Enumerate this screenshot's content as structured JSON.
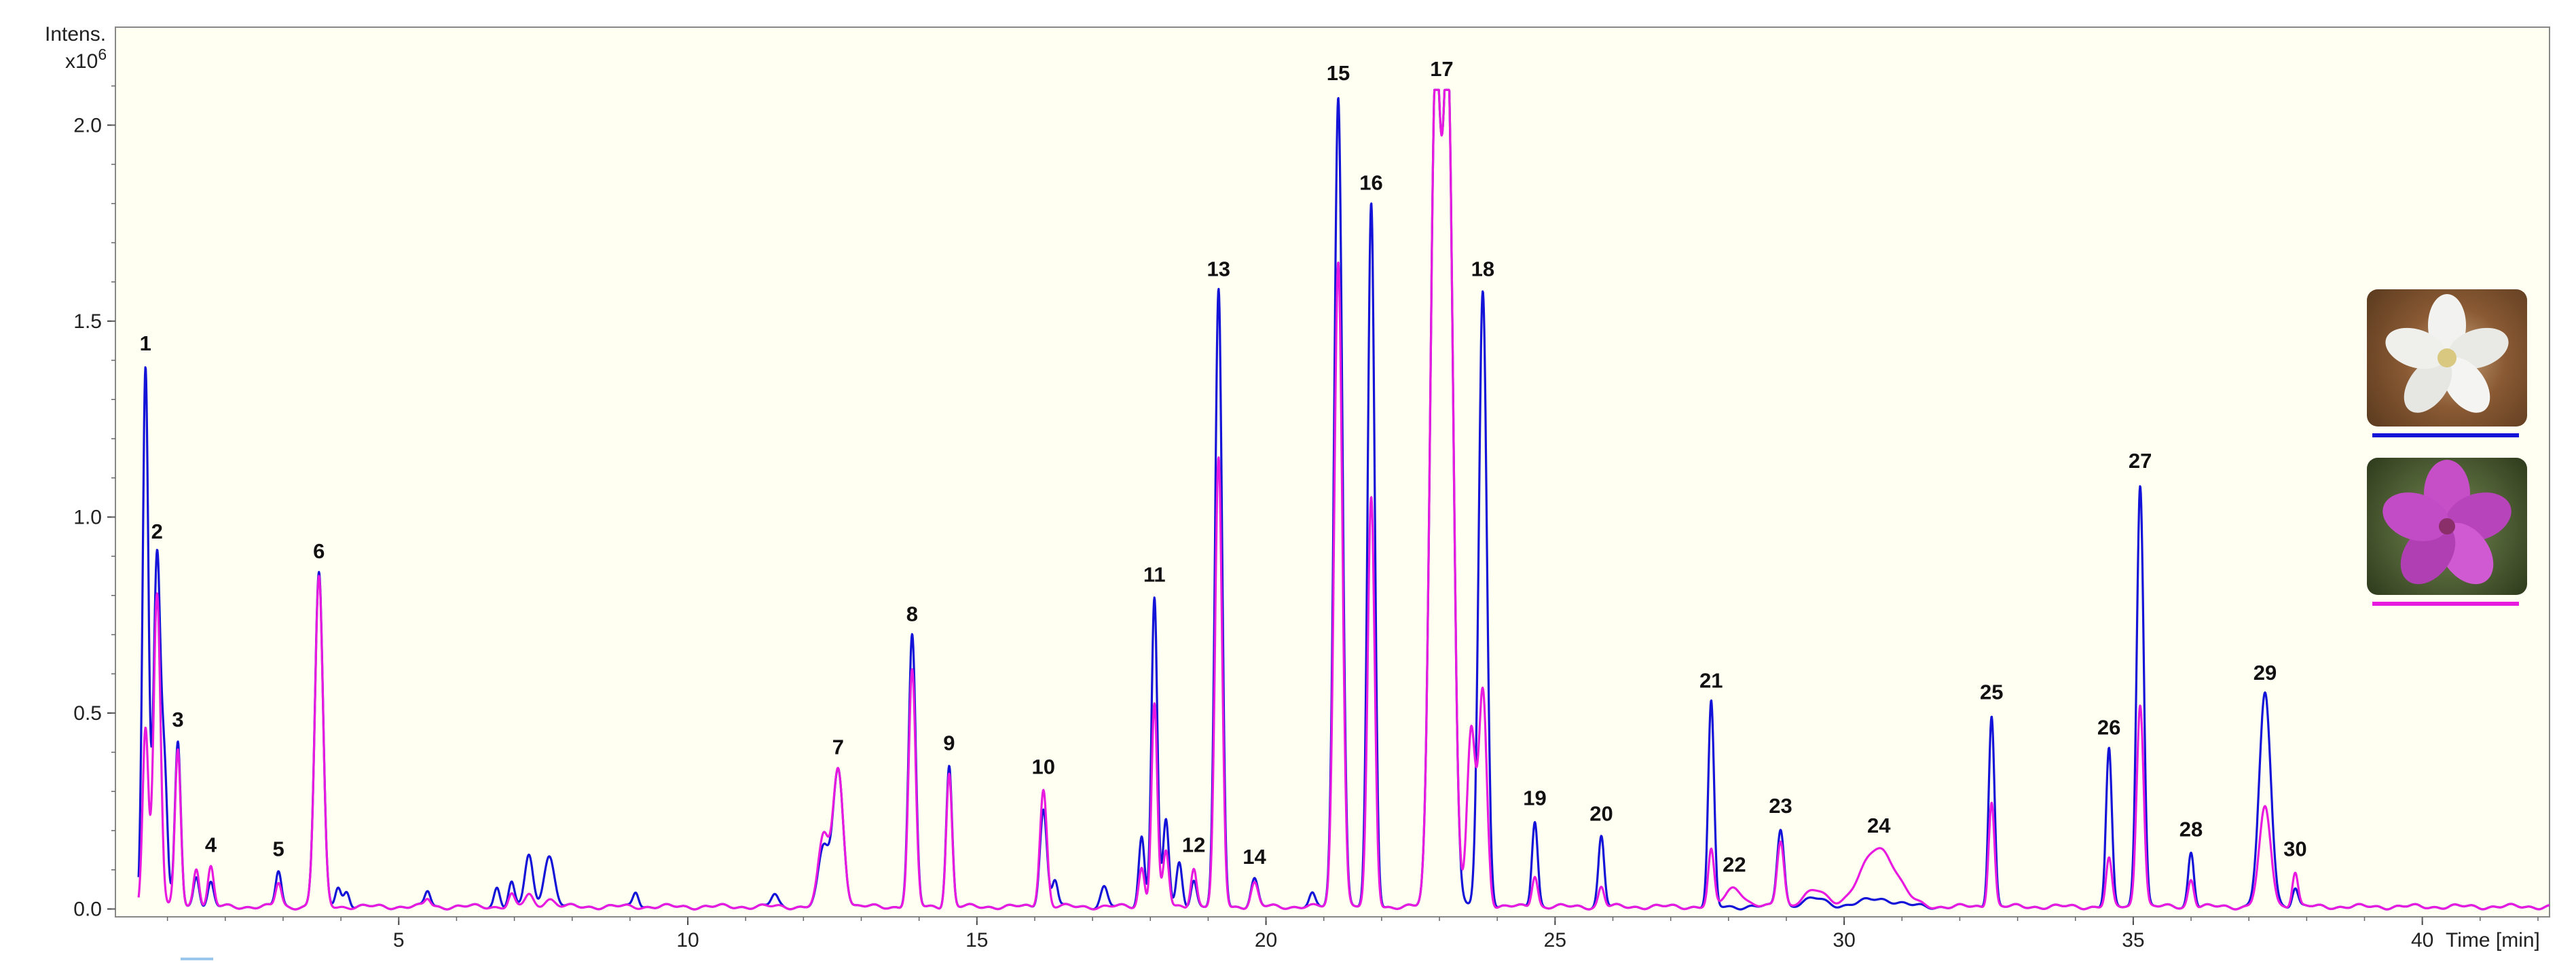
{
  "chart_data": {
    "type": "line",
    "y_axis_title": "Intens.",
    "y_axis_scale_base": "x10",
    "y_axis_scale_exp": "6",
    "x_axis_title": "Time [min]",
    "xlim": [
      0.1,
      42.2
    ],
    "ylim": [
      -0.02,
      2.25
    ],
    "x_ticks": [
      "5",
      "10",
      "15",
      "20",
      "25",
      "30",
      "35",
      "40"
    ],
    "y_ticks": [
      "0.0",
      "0.5",
      "1.0",
      "1.5",
      "2.0"
    ],
    "background_color": "#FFFFF2",
    "series": [
      {
        "color": "#1414D8",
        "legend_icon": "white-flower-photo",
        "peaks": [
          [
            0.62,
            1.38,
            0.05
          ],
          [
            0.82,
            0.9,
            0.06
          ],
          [
            0.95,
            0.32,
            0.05
          ],
          [
            1.18,
            0.42,
            0.05
          ],
          [
            1.5,
            0.08,
            0.05
          ],
          [
            1.75,
            0.06,
            0.05
          ],
          [
            2.92,
            0.09,
            0.05
          ],
          [
            3.62,
            0.85,
            0.07
          ],
          [
            3.95,
            0.05,
            0.05
          ],
          [
            4.1,
            0.04,
            0.05
          ],
          [
            5.5,
            0.04,
            0.05
          ],
          [
            6.7,
            0.05,
            0.05
          ],
          [
            6.95,
            0.06,
            0.05
          ],
          [
            7.25,
            0.13,
            0.07
          ],
          [
            7.6,
            0.13,
            0.09
          ],
          [
            9.1,
            0.04,
            0.05
          ],
          [
            11.5,
            0.03,
            0.06
          ],
          [
            12.35,
            0.15,
            0.09
          ],
          [
            12.6,
            0.35,
            0.09
          ],
          [
            13.88,
            0.69,
            0.06
          ],
          [
            14.52,
            0.36,
            0.05
          ],
          [
            16.15,
            0.25,
            0.06
          ],
          [
            16.35,
            0.07,
            0.05
          ],
          [
            17.2,
            0.05,
            0.06
          ],
          [
            17.85,
            0.18,
            0.05
          ],
          [
            18.07,
            0.79,
            0.05
          ],
          [
            18.27,
            0.22,
            0.05
          ],
          [
            18.5,
            0.11,
            0.05
          ],
          [
            18.75,
            0.07,
            0.05
          ],
          [
            19.18,
            1.57,
            0.06
          ],
          [
            19.8,
            0.07,
            0.06
          ],
          [
            20.8,
            0.03,
            0.05
          ],
          [
            21.25,
            2.07,
            0.07
          ],
          [
            21.82,
            1.79,
            0.06
          ],
          [
            22.93,
            2.08,
            0.09
          ],
          [
            23.15,
            2.08,
            0.09
          ],
          [
            23.75,
            1.57,
            0.07
          ],
          [
            24.65,
            0.22,
            0.05
          ],
          [
            25.8,
            0.18,
            0.05
          ],
          [
            27.7,
            0.52,
            0.05
          ],
          [
            28.9,
            0.2,
            0.06
          ],
          [
            29.5,
            0.02,
            0.2
          ],
          [
            30.6,
            0.02,
            0.3
          ],
          [
            32.55,
            0.49,
            0.05
          ],
          [
            34.58,
            0.4,
            0.05
          ],
          [
            35.12,
            1.08,
            0.06
          ],
          [
            36.0,
            0.14,
            0.05
          ],
          [
            37.28,
            0.54,
            0.1
          ],
          [
            37.8,
            0.05,
            0.05
          ]
        ]
      },
      {
        "color": "#E81AE0",
        "legend_icon": "pink-flower-photo",
        "peaks": [
          [
            0.62,
            0.46,
            0.05
          ],
          [
            0.82,
            0.8,
            0.06
          ],
          [
            1.18,
            0.4,
            0.05
          ],
          [
            1.5,
            0.1,
            0.05
          ],
          [
            1.75,
            0.1,
            0.05
          ],
          [
            2.92,
            0.06,
            0.05
          ],
          [
            3.62,
            0.84,
            0.07
          ],
          [
            5.5,
            0.02,
            0.05
          ],
          [
            6.95,
            0.03,
            0.05
          ],
          [
            7.25,
            0.03,
            0.07
          ],
          [
            7.6,
            0.02,
            0.09
          ],
          [
            12.35,
            0.18,
            0.09
          ],
          [
            12.6,
            0.35,
            0.09
          ],
          [
            13.88,
            0.6,
            0.06
          ],
          [
            14.52,
            0.34,
            0.05
          ],
          [
            16.15,
            0.3,
            0.06
          ],
          [
            17.85,
            0.1,
            0.05
          ],
          [
            18.07,
            0.52,
            0.05
          ],
          [
            18.27,
            0.14,
            0.05
          ],
          [
            18.75,
            0.1,
            0.05
          ],
          [
            19.18,
            1.14,
            0.06
          ],
          [
            19.8,
            0.06,
            0.06
          ],
          [
            21.25,
            1.65,
            0.07
          ],
          [
            21.82,
            1.04,
            0.06
          ],
          [
            22.93,
            2.08,
            0.09
          ],
          [
            23.15,
            2.08,
            0.09
          ],
          [
            23.75,
            0.55,
            0.07
          ],
          [
            23.55,
            0.45,
            0.07
          ],
          [
            24.65,
            0.08,
            0.05
          ],
          [
            25.8,
            0.05,
            0.05
          ],
          [
            27.7,
            0.14,
            0.05
          ],
          [
            28.1,
            0.05,
            0.15
          ],
          [
            28.9,
            0.17,
            0.06
          ],
          [
            29.5,
            0.04,
            0.2
          ],
          [
            30.6,
            0.15,
            0.3
          ],
          [
            32.55,
            0.27,
            0.05
          ],
          [
            34.58,
            0.12,
            0.05
          ],
          [
            35.12,
            0.52,
            0.06
          ],
          [
            36.0,
            0.07,
            0.05
          ],
          [
            37.28,
            0.25,
            0.1
          ],
          [
            37.8,
            0.09,
            0.05
          ]
        ]
      }
    ],
    "peak_labels": [
      {
        "text": "1",
        "x": 0.62,
        "y": 1.38
      },
      {
        "text": "2",
        "x": 0.82,
        "y": 0.9
      },
      {
        "text": "3",
        "x": 1.18,
        "y": 0.42
      },
      {
        "text": "4",
        "x": 1.75,
        "y": 0.1
      },
      {
        "text": "5",
        "x": 2.92,
        "y": 0.09
      },
      {
        "text": "6",
        "x": 3.62,
        "y": 0.85
      },
      {
        "text": "7",
        "x": 12.6,
        "y": 0.35
      },
      {
        "text": "8",
        "x": 13.88,
        "y": 0.69
      },
      {
        "text": "9",
        "x": 14.52,
        "y": 0.36
      },
      {
        "text": "10",
        "x": 16.15,
        "y": 0.3
      },
      {
        "text": "11",
        "x": 18.07,
        "y": 0.79
      },
      {
        "text": "12",
        "x": 18.75,
        "y": 0.1
      },
      {
        "text": "13",
        "x": 19.18,
        "y": 1.57
      },
      {
        "text": "14",
        "x": 19.8,
        "y": 0.07
      },
      {
        "text": "15",
        "x": 21.25,
        "y": 2.07
      },
      {
        "text": "16",
        "x": 21.82,
        "y": 1.79
      },
      {
        "text": "17",
        "x": 23.04,
        "y": 2.08
      },
      {
        "text": "18",
        "x": 23.75,
        "y": 1.57
      },
      {
        "text": "19",
        "x": 24.65,
        "y": 0.22
      },
      {
        "text": "20",
        "x": 25.8,
        "y": 0.18
      },
      {
        "text": "21",
        "x": 27.7,
        "y": 0.52
      },
      {
        "text": "22",
        "x": 28.1,
        "y": 0.05
      },
      {
        "text": "23",
        "x": 28.9,
        "y": 0.2
      },
      {
        "text": "24",
        "x": 30.6,
        "y": 0.15
      },
      {
        "text": "25",
        "x": 32.55,
        "y": 0.49
      },
      {
        "text": "26",
        "x": 34.58,
        "y": 0.4
      },
      {
        "text": "27",
        "x": 35.12,
        "y": 1.08
      },
      {
        "text": "28",
        "x": 36.0,
        "y": 0.14
      },
      {
        "text": "29",
        "x": 37.28,
        "y": 0.54
      },
      {
        "text": "30",
        "x": 37.8,
        "y": 0.09
      }
    ]
  }
}
